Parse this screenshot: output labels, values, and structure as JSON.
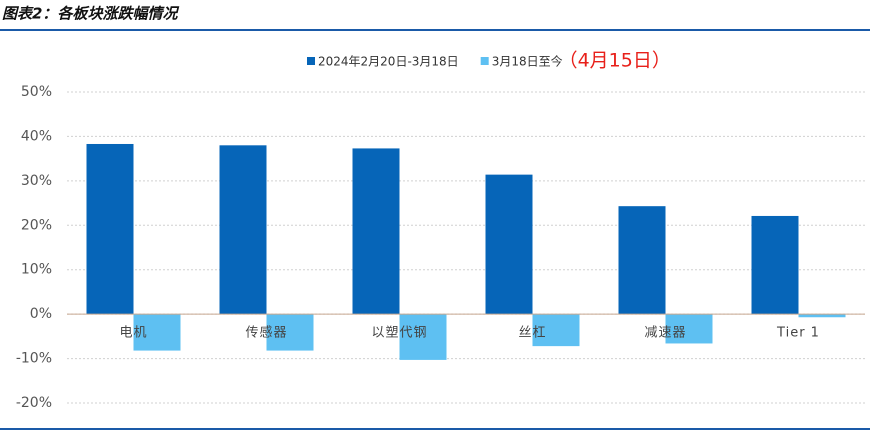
{
  "chart_data": {
    "type": "bar",
    "title": "图表2：各板块涨跌幅情况",
    "categories": [
      "电机",
      "传感器",
      "以塑代钢",
      "丝杠",
      "减速器",
      "Tier 1"
    ],
    "series": [
      {
        "name": "2024年2月20日-3月18日",
        "color": "#0665b8",
        "values": [
          38.3,
          38.0,
          37.3,
          31.4,
          24.3,
          22.1
        ]
      },
      {
        "name": "3月18日至今",
        "color": "#5ec0f2",
        "values": [
          -8.2,
          -8.2,
          -10.3,
          -7.2,
          -6.6,
          -0.7
        ]
      }
    ],
    "annotation": "（4月15日）",
    "ylim": [
      -20,
      50
    ],
    "yticks": [
      {
        "value": -20,
        "label": "-20%"
      },
      {
        "value": -10,
        "label": "-10%"
      },
      {
        "value": 0,
        "label": "0%"
      },
      {
        "value": 10,
        "label": "10%"
      },
      {
        "value": 20,
        "label": "20%"
      },
      {
        "value": 30,
        "label": "30%"
      },
      {
        "value": 40,
        "label": "40%"
      },
      {
        "value": 50,
        "label": "50%"
      }
    ],
    "grid": true
  }
}
